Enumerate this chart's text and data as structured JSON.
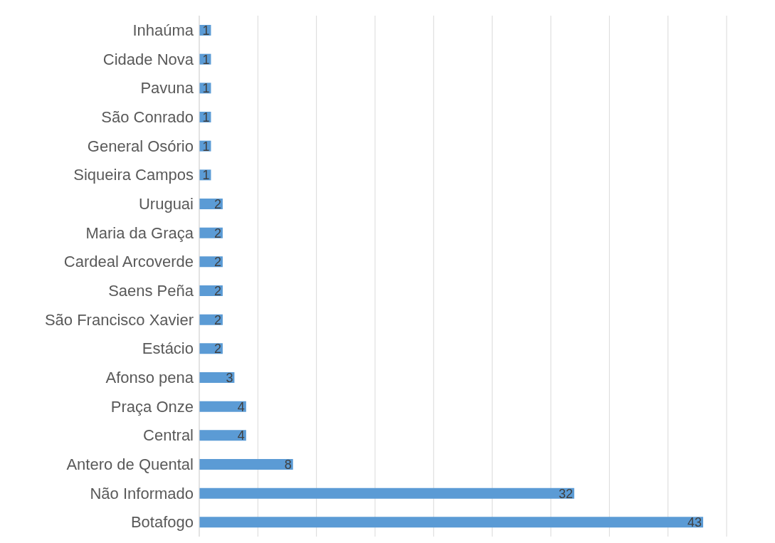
{
  "chart_data": {
    "type": "bar",
    "orientation": "horizontal",
    "categories": [
      "Inhaúma",
      "Cidade Nova",
      "Pavuna",
      "São Conrado",
      "General Osório",
      "Siqueira Campos",
      "Uruguai",
      "Maria da Graça",
      "Cardeal Arcoverde",
      "Saens Peña",
      "São Francisco Xavier",
      "Estácio",
      "Afonso pena",
      "Praça Onze",
      "Central",
      "Antero de Quental",
      "Não Informado",
      "Botafogo"
    ],
    "values": [
      1,
      1,
      1,
      1,
      1,
      1,
      2,
      2,
      2,
      2,
      2,
      2,
      3,
      4,
      4,
      8,
      32,
      43
    ],
    "color": "#5b9bd5",
    "xlim": [
      0,
      45
    ],
    "xticks": [
      {
        "value": 0,
        "label": null
      },
      {
        "value": 5,
        "label": null
      },
      {
        "value": 10,
        "label": null
      },
      {
        "value": 15,
        "label": null
      },
      {
        "value": 20,
        "label": null
      },
      {
        "value": 25,
        "label": null
      },
      {
        "value": 30,
        "label": null
      },
      {
        "value": 35,
        "label": null
      },
      {
        "value": 40,
        "label": null
      },
      {
        "value": 45,
        "label": null
      }
    ],
    "grid": "x",
    "tick_labels": "y",
    "data_labels": true
  }
}
